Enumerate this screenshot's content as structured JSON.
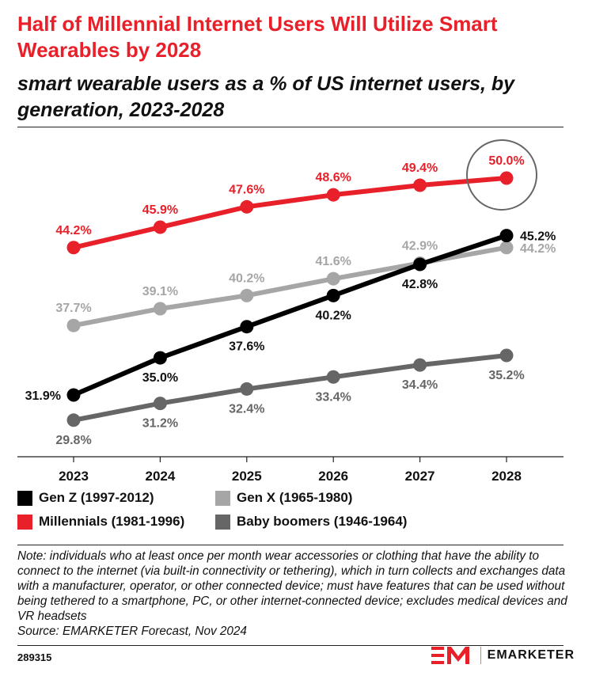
{
  "header": {
    "title": "Half of Millennial Internet Users Will Utilize Smart Wearables by 2028",
    "subtitle": "smart wearable users as a % of US internet users, by generation, 2023-2028"
  },
  "chart_data": {
    "type": "line",
    "x": [
      "2023",
      "2024",
      "2025",
      "2026",
      "2027",
      "2028"
    ],
    "grid": false,
    "legend_position": "bottom",
    "series": [
      {
        "name": "Gen Z (1997-2012)",
        "color": "#000000",
        "values": [
          31.9,
          35.0,
          37.6,
          40.2,
          42.8,
          45.2
        ],
        "labels": [
          "31.9%",
          "35.0%",
          "37.6%",
          "40.2%",
          "42.8%",
          "45.2%"
        ]
      },
      {
        "name": "Gen X (1965-1980)",
        "color": "#a6a6a6",
        "values": [
          37.7,
          39.1,
          40.2,
          41.6,
          42.9,
          44.2
        ],
        "labels": [
          "37.7%",
          "39.1%",
          "40.2%",
          "41.6%",
          "42.9%",
          "44.2%"
        ]
      },
      {
        "name": "Millennials (1981-1996)",
        "color": "#e8202a",
        "values": [
          44.2,
          45.9,
          47.6,
          48.6,
          49.4,
          50.0
        ],
        "labels": [
          "44.2%",
          "45.9%",
          "47.6%",
          "48.6%",
          "49.4%",
          "50.0%"
        ]
      },
      {
        "name": "Baby boomers (1946-1964)",
        "color": "#666666",
        "values": [
          29.8,
          31.2,
          32.4,
          33.4,
          34.4,
          35.2
        ],
        "labels": [
          "29.8%",
          "31.2%",
          "32.4%",
          "33.4%",
          "34.4%",
          "35.2%"
        ]
      }
    ],
    "highlight": {
      "series": "Millennials (1981-1996)",
      "x": "2028",
      "style": "circle"
    }
  },
  "footer": {
    "note": "Note: individuals who at least once per month wear accessories or clothing that have the ability to connect to the internet (via built-in connectivity or tethering), which in turn collects and exchanges data with a manufacturer, operator, or other connected device; must have features that can be used without being tethered to a smartphone, PC, or other internet-connected device; excludes medical devices and VR headsets",
    "source": "Source: EMARKETER Forecast, Nov 2024",
    "chart_id": "289315",
    "brand": "EMARKETER",
    "brand_icon": "em-logo-icon",
    "brand_color": "#e8202a"
  }
}
